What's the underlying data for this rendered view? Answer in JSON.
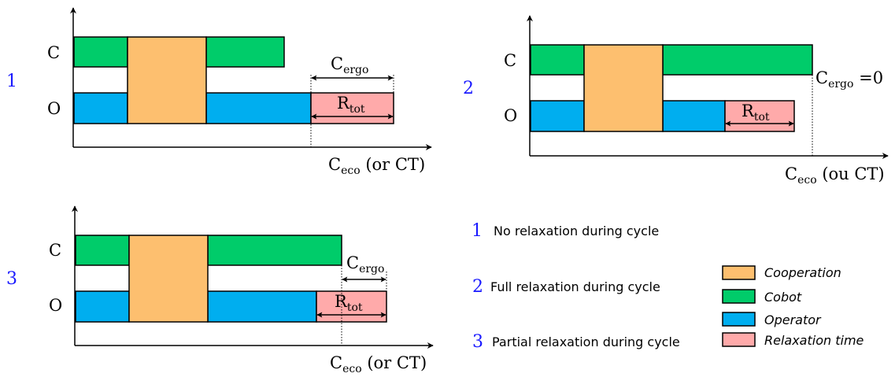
{
  "colors": {
    "cooperation": "#fdbf6f",
    "cobot": "#00cc6a",
    "operator": "#00aeef",
    "relaxation": "#ffaaaa",
    "index_number": "#1a1aff",
    "stroke": "#000000"
  },
  "rows": {
    "cobot_letter": "C",
    "operator_letter": "O"
  },
  "panels": [
    {
      "index": "1",
      "x_axis_label": {
        "main": "C",
        "sub": "eco",
        "suffix": " (or CT)"
      },
      "c_ergo": {
        "main": "C",
        "sub": "ergo",
        "suffix": ""
      },
      "r_tot": {
        "main": "R",
        "sub": "tot"
      }
    },
    {
      "index": "2",
      "x_axis_label": {
        "main": "C",
        "sub": "eco",
        "suffix": " (ou CT)"
      },
      "c_ergo": {
        "main": "C",
        "sub": "ergo",
        "suffix": " =0"
      },
      "r_tot": {
        "main": "R",
        "sub": "tot"
      }
    },
    {
      "index": "3",
      "x_axis_label": {
        "main": "C",
        "sub": "eco",
        "suffix": " (or CT)"
      },
      "c_ergo": {
        "main": "C",
        "sub": "ergo",
        "suffix": ""
      },
      "r_tot": {
        "main": "R",
        "sub": "tot"
      }
    }
  ],
  "cases": [
    {
      "index": "1",
      "text": "No relaxation during cycle"
    },
    {
      "index": "2",
      "text": "Full relaxation during cycle"
    },
    {
      "index": "3",
      "text": "Partial relaxation during cycle"
    }
  ],
  "legend": [
    {
      "label": "Cooperation",
      "color": "#fdbf6f"
    },
    {
      "label": "Cobot",
      "color": "#00cc6a"
    },
    {
      "label": "Operator",
      "color": "#00aeef"
    },
    {
      "label": "Relaxation time",
      "color": "#ffaaaa"
    }
  ]
}
